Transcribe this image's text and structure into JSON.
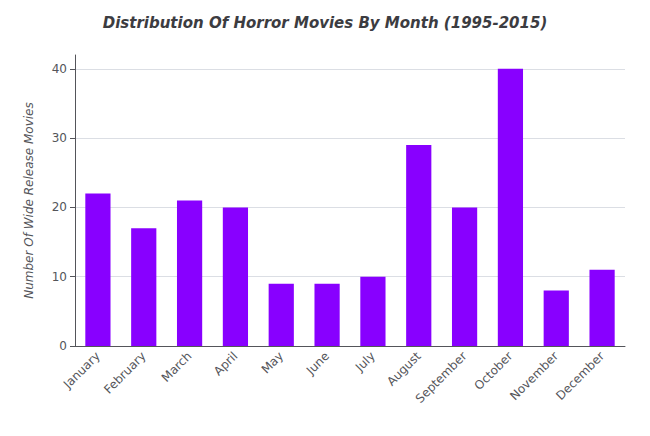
{
  "chart_data": {
    "type": "bar",
    "title": "Distribution Of Horror Movies By Month (1995-2015)",
    "ylabel": "Number Of Wide Release Movies",
    "categories": [
      "January",
      "February",
      "March",
      "April",
      "May",
      "June",
      "July",
      "August",
      "September",
      "October",
      "November",
      "December"
    ],
    "values": [
      22,
      17,
      21,
      20,
      9,
      9,
      10,
      29,
      20,
      40,
      8,
      11
    ],
    "color": "#8800ff",
    "ylim": [
      0,
      42
    ],
    "yticks": [
      0,
      10,
      20,
      30,
      40
    ],
    "grid": true
  }
}
